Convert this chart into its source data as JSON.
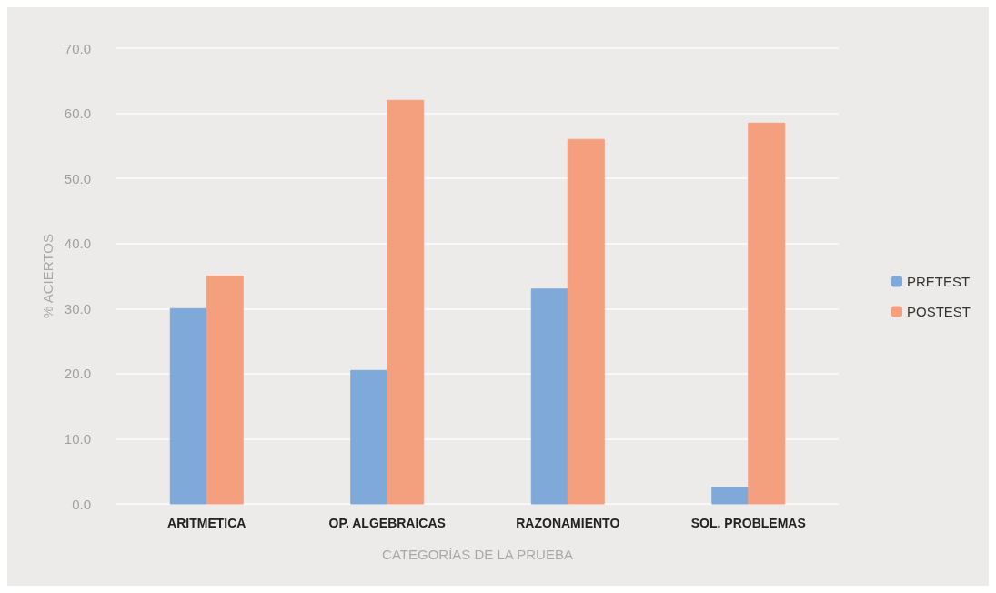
{
  "chart_data": {
    "type": "bar",
    "xlabel": "CATEGORÍAS DE LA PRUEBA",
    "ylabel": "% ACIERTOS",
    "categories": [
      "ARITMETICA",
      "OP. ALGEBRAICAS",
      "RAZONAMIENTO",
      "SOL. PROBLEMAS"
    ],
    "series": [
      {
        "name": "PRETEST",
        "color": "#7fa9d9",
        "values": [
          30,
          20.5,
          33,
          2.5
        ]
      },
      {
        "name": "POSTEST",
        "color": "#f4a07f",
        "values": [
          35,
          62,
          56,
          58.5
        ]
      }
    ],
    "ylim": [
      0,
      70
    ],
    "yticks": [
      {
        "value": 0,
        "label": "0.0"
      },
      {
        "value": 10,
        "label": "10.0"
      },
      {
        "value": 20,
        "label": "20.0"
      },
      {
        "value": 30,
        "label": "30.0"
      },
      {
        "value": 40,
        "label": "40.0"
      },
      {
        "value": 50,
        "label": "50.0"
      },
      {
        "value": 60,
        "label": "60.0"
      },
      {
        "value": 70,
        "label": "70.0"
      }
    ],
    "grid": "y",
    "legend": "right"
  }
}
